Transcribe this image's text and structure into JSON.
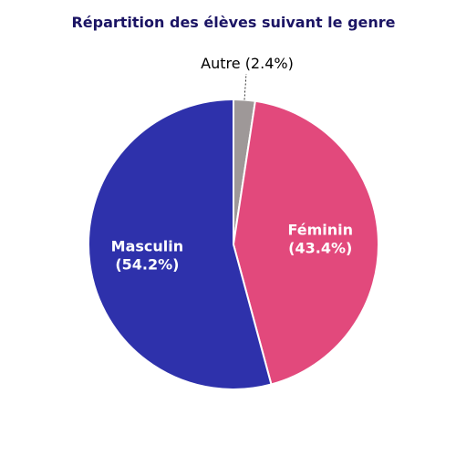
{
  "chart_data": {
    "type": "pie",
    "title": "Répartition des élèves suivant le genre",
    "slices": [
      {
        "label": "Autre",
        "value": 2.4,
        "display": "Autre (2.4%)",
        "color": "#9e9898",
        "label_position": "outside"
      },
      {
        "label": "Féminin",
        "value": 43.4,
        "display_lines": [
          "Féminin",
          "(43.4%)"
        ],
        "color": "#e2497c",
        "label_position": "inside"
      },
      {
        "label": "Masculin",
        "value": 54.2,
        "display_lines": [
          "Masculin",
          "(54.2%)"
        ],
        "color": "#2e31ab",
        "label_position": "inside"
      }
    ],
    "start": "top",
    "direction": "clockwise",
    "legend": "none"
  }
}
